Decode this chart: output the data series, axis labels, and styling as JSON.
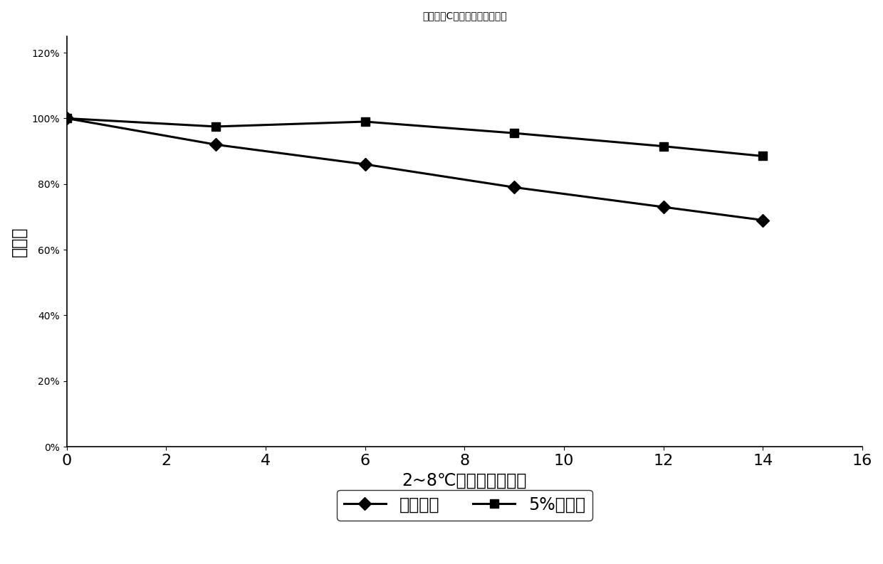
{
  "title": "海藻糖对C肽酶试剂稳定性影响",
  "xlabel": "2~8℃存放时间（月）",
  "ylabel": "酶活性",
  "xlim": [
    0,
    16
  ],
  "ylim": [
    0,
    1.25
  ],
  "yticks": [
    0,
    0.2,
    0.4,
    0.6,
    0.8,
    1.0,
    1.2
  ],
  "ytick_labels": [
    "0%",
    "20%",
    "40%",
    "60%",
    "80%",
    "100%",
    "120%"
  ],
  "xticks": [
    0,
    2,
    4,
    6,
    8,
    10,
    12,
    14,
    16
  ],
  "series1": {
    "label": "无海藻糖",
    "x": [
      0,
      3,
      6,
      9,
      12,
      14
    ],
    "y": [
      1.0,
      0.92,
      0.86,
      0.79,
      0.73,
      0.69
    ],
    "color": "#000000",
    "marker": "D",
    "markersize": 9,
    "linewidth": 2.2
  },
  "series2": {
    "label": "5%海藻糖",
    "x": [
      0,
      3,
      6,
      9,
      12,
      14
    ],
    "y": [
      1.0,
      0.975,
      0.99,
      0.955,
      0.915,
      0.885
    ],
    "color": "#000000",
    "marker": "s",
    "markersize": 9,
    "linewidth": 2.2
  },
  "background_color": "#ffffff",
  "title_fontsize": 26,
  "axis_fontsize": 17,
  "tick_fontsize": 16,
  "legend_fontsize": 17
}
